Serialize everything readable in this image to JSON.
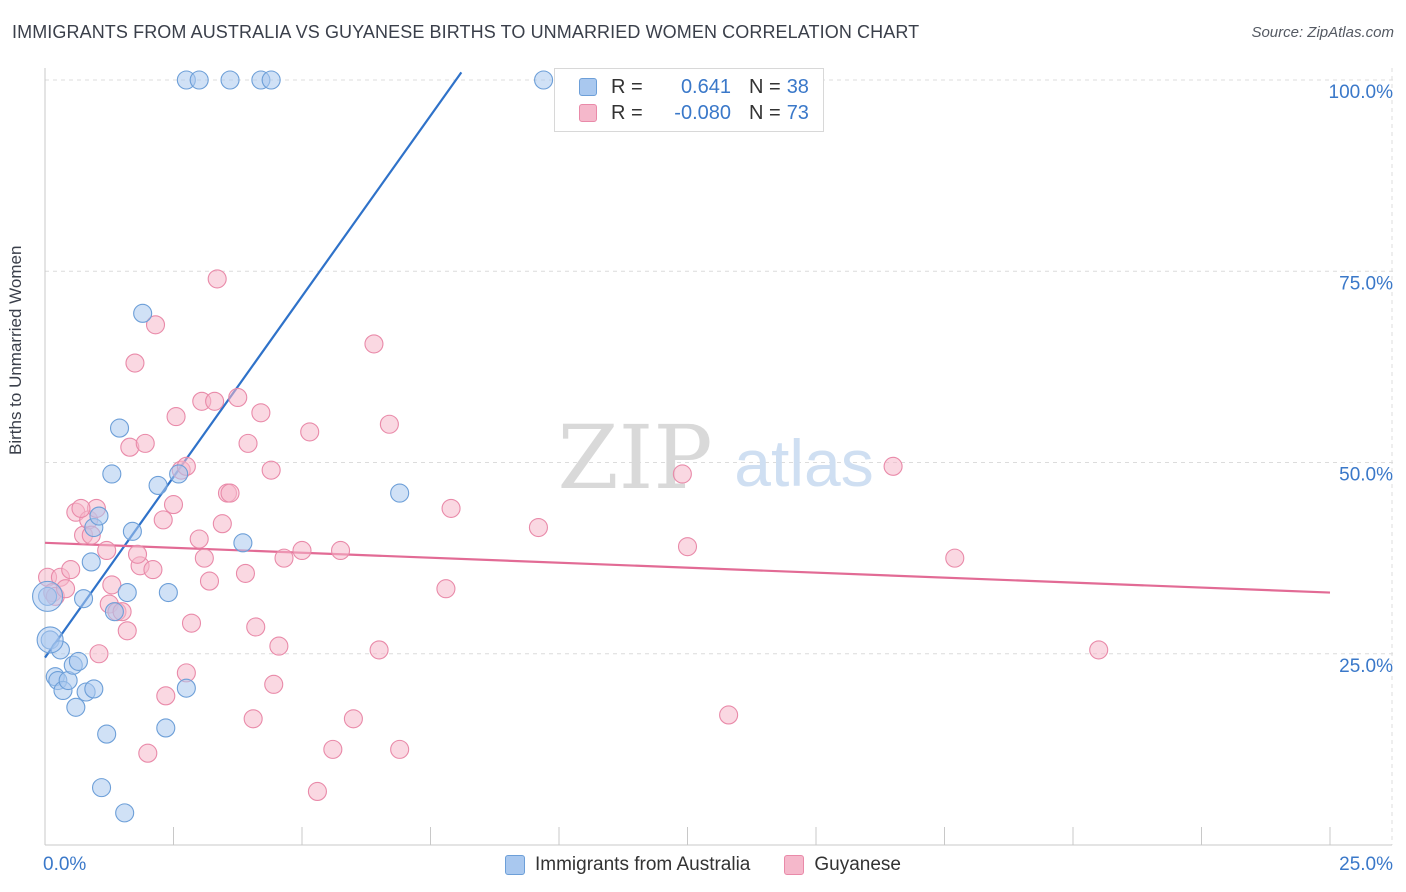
{
  "title": "IMMIGRANTS FROM AUSTRALIA VS GUYANESE BIRTHS TO UNMARRIED WOMEN CORRELATION CHART",
  "source": "Source: ZipAtlas.com",
  "watermark": {
    "zip": "ZIP",
    "atlas": "atlas"
  },
  "legend": {
    "rows": [
      {
        "r_label": "R =",
        "r_value": "0.641",
        "n_label": "N =",
        "n_value": "38"
      },
      {
        "r_label": "R =",
        "r_value": "-0.080",
        "n_label": "N =",
        "n_value": "73"
      }
    ]
  },
  "colors": {
    "blue_fill": "#a9c8ef",
    "blue_stroke": "#6d9fd8",
    "blue_line": "#2f72c9",
    "pink_fill": "#f5b8cb",
    "pink_stroke": "#e98aa9",
    "pink_line": "#e26b95",
    "axis_text": "#3a78c9",
    "grid": "#dcdcdc"
  },
  "chart_data": {
    "type": "scatter",
    "title": "IMMIGRANTS FROM AUSTRALIA VS GUYANESE BIRTHS TO UNMARRIED WOMEN CORRELATION CHART",
    "xlabel": "",
    "ylabel": "Births to Unmarried Women",
    "xlim": [
      0,
      25
    ],
    "ylim": [
      0,
      100
    ],
    "x_tick_labels": [
      "0.0%",
      "25.0%"
    ],
    "y_tick_labels": [
      "25.0%",
      "50.0%",
      "75.0%",
      "100.0%"
    ],
    "y_ticks": [
      25,
      50,
      75,
      100
    ],
    "grid": true,
    "legend_position": "bottom",
    "series": [
      {
        "name": "Immigrants from Australia",
        "r": 0.641,
        "n": 38,
        "trend": {
          "x": [
            0,
            8.1
          ],
          "y": [
            24.5,
            101
          ]
        },
        "points": [
          [
            0.05,
            32.5
          ],
          [
            0.1,
            26.8
          ],
          [
            0.2,
            22.0
          ],
          [
            0.25,
            21.5
          ],
          [
            0.3,
            25.5
          ],
          [
            0.35,
            20.2
          ],
          [
            0.45,
            21.5
          ],
          [
            0.55,
            23.5
          ],
          [
            0.6,
            18.0
          ],
          [
            0.65,
            24.0
          ],
          [
            0.75,
            32.2
          ],
          [
            0.8,
            20.0
          ],
          [
            0.9,
            37.0
          ],
          [
            0.95,
            20.4
          ],
          [
            0.95,
            41.5
          ],
          [
            1.05,
            43.0
          ],
          [
            1.1,
            7.5
          ],
          [
            1.2,
            14.5
          ],
          [
            1.3,
            48.5
          ],
          [
            1.35,
            30.5
          ],
          [
            1.45,
            54.5
          ],
          [
            1.55,
            4.2
          ],
          [
            1.6,
            33.0
          ],
          [
            1.7,
            41.0
          ],
          [
            1.9,
            69.5
          ],
          [
            2.2,
            47.0
          ],
          [
            2.35,
            15.3
          ],
          [
            2.4,
            33.0
          ],
          [
            2.6,
            48.5
          ],
          [
            2.75,
            20.5
          ],
          [
            2.75,
            100
          ],
          [
            3.0,
            100
          ],
          [
            3.6,
            100
          ],
          [
            4.2,
            100
          ],
          [
            4.4,
            100
          ],
          [
            3.85,
            39.5
          ],
          [
            6.9,
            46.0
          ],
          [
            9.7,
            100
          ]
        ]
      },
      {
        "name": "Guyanese",
        "r": -0.08,
        "n": 73,
        "trend": {
          "x": [
            0,
            25
          ],
          "y": [
            39.5,
            33.0
          ]
        },
        "points": [
          [
            0.05,
            35.0
          ],
          [
            0.15,
            33.0
          ],
          [
            0.2,
            32.5
          ],
          [
            0.3,
            35.0
          ],
          [
            0.4,
            33.5
          ],
          [
            0.5,
            36.0
          ],
          [
            0.6,
            43.5
          ],
          [
            0.75,
            40.5
          ],
          [
            0.85,
            42.5
          ],
          [
            0.9,
            40.5
          ],
          [
            1.0,
            44.0
          ],
          [
            1.05,
            25.0
          ],
          [
            1.2,
            38.5
          ],
          [
            1.25,
            31.5
          ],
          [
            1.3,
            34.0
          ],
          [
            1.4,
            30.5
          ],
          [
            1.5,
            30.5
          ],
          [
            1.6,
            28.0
          ],
          [
            1.65,
            52.0
          ],
          [
            1.75,
            63.0
          ],
          [
            1.85,
            36.5
          ],
          [
            1.95,
            52.5
          ],
          [
            2.0,
            12.0
          ],
          [
            2.1,
            36.0
          ],
          [
            2.15,
            68.0
          ],
          [
            2.3,
            42.5
          ],
          [
            2.35,
            19.5
          ],
          [
            2.5,
            44.5
          ],
          [
            2.55,
            56.0
          ],
          [
            2.65,
            49.0
          ],
          [
            2.75,
            49.5
          ],
          [
            2.75,
            22.5
          ],
          [
            2.85,
            29.0
          ],
          [
            3.0,
            40.0
          ],
          [
            3.05,
            58.0
          ],
          [
            3.1,
            37.5
          ],
          [
            3.2,
            34.5
          ],
          [
            3.3,
            58.0
          ],
          [
            3.35,
            74.0
          ],
          [
            3.45,
            42.0
          ],
          [
            3.55,
            46.0
          ],
          [
            3.6,
            46.0
          ],
          [
            3.75,
            58.5
          ],
          [
            3.9,
            35.5
          ],
          [
            3.95,
            52.5
          ],
          [
            4.05,
            16.5
          ],
          [
            4.1,
            28.5
          ],
          [
            4.2,
            56.5
          ],
          [
            4.4,
            49.0
          ],
          [
            4.45,
            21.0
          ],
          [
            4.55,
            26.0
          ],
          [
            4.65,
            37.5
          ],
          [
            5.0,
            38.5
          ],
          [
            5.15,
            54.0
          ],
          [
            5.3,
            7.0
          ],
          [
            5.6,
            12.5
          ],
          [
            5.75,
            38.5
          ],
          [
            6.0,
            16.5
          ],
          [
            6.4,
            65.5
          ],
          [
            6.5,
            25.5
          ],
          [
            6.7,
            55.0
          ],
          [
            6.9,
            12.5
          ],
          [
            7.8,
            33.5
          ],
          [
            7.9,
            44.0
          ],
          [
            9.6,
            41.5
          ],
          [
            12.4,
            48.5
          ],
          [
            12.5,
            39.0
          ],
          [
            13.3,
            17.0
          ],
          [
            16.5,
            49.5
          ],
          [
            17.7,
            37.5
          ],
          [
            20.5,
            25.5
          ],
          [
            0.7,
            44.0
          ],
          [
            1.8,
            38.0
          ]
        ]
      }
    ]
  }
}
